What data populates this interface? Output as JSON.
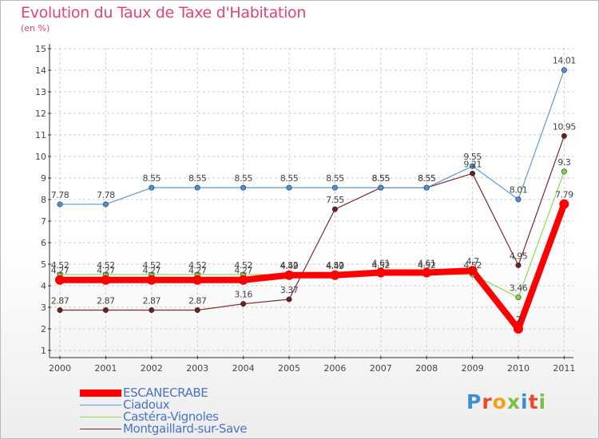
{
  "title": "Evolution du Taux de Taxe d'Habitation",
  "subtitle": "(en %)",
  "logo": "Proxiti",
  "colors": {
    "title": "#e0437b",
    "grid": "#cccccc",
    "axis": "#333333",
    "label": "#444444",
    "legend_text": "#4a73c5"
  },
  "chart_data": {
    "type": "line",
    "title": "Evolution du Taux de Taxe d'Habitation",
    "ylabel": "(en %)",
    "xlabel": "",
    "categories": [
      "2000",
      "2001",
      "2002",
      "2003",
      "2004",
      "2005",
      "2006",
      "2007",
      "2008",
      "2009",
      "2010",
      "2011"
    ],
    "yticks": [
      1,
      2,
      3,
      4,
      5,
      6,
      7,
      8,
      9,
      10,
      11,
      12,
      13,
      14,
      15
    ],
    "ylim": [
      0.5,
      15
    ],
    "grid": true,
    "legend_position": "bottom-left",
    "series": [
      {
        "name": "ESCANECRABE",
        "color": "#ff0000",
        "marker_color": "#ff0000",
        "style": "thick",
        "values": [
          4.27,
          4.27,
          4.27,
          4.27,
          4.27,
          4.49,
          4.49,
          4.61,
          4.61,
          4.7,
          2,
          7.79
        ],
        "labels": [
          "4.27",
          "4.27",
          "4.27",
          "4.27",
          "4.27",
          "4.49",
          "4.49",
          "4.61",
          "4.61",
          "4.7",
          "2",
          "7.79"
        ]
      },
      {
        "name": "Ciadoux",
        "color": "#5b9bd5",
        "marker_color": "#4a90d9",
        "style": "thin",
        "values": [
          7.78,
          7.78,
          8.55,
          8.55,
          8.55,
          8.55,
          8.55,
          8.55,
          8.55,
          9.55,
          8.01,
          14.01
        ],
        "labels": [
          "7.78",
          "7.78",
          "8.55",
          "8.55",
          "8.55",
          "8.55",
          "8.55",
          "8.55",
          "8.55",
          "9.55",
          "8.01",
          "14.01"
        ]
      },
      {
        "name": "Castéra-Vignoles",
        "color": "#88dd55",
        "marker_color": "#7ed348",
        "style": "thin",
        "values": [
          4.52,
          4.52,
          4.52,
          4.52,
          4.52,
          4.52,
          4.52,
          4.52,
          4.52,
          4.52,
          3.46,
          9.3
        ],
        "labels": [
          "4.52",
          "4.52",
          "4.52",
          "4.52",
          "4.52",
          "4.52",
          "4.52",
          "4.52",
          "4.52",
          "4.52",
          "3.46",
          "9.3"
        ]
      },
      {
        "name": "Montgaillard-sur-Save",
        "color": "#7a2a2a",
        "marker_color": "#6b1f1f",
        "style": "thin",
        "values": [
          2.87,
          2.87,
          2.87,
          2.87,
          3.16,
          3.37,
          7.55,
          8.55,
          8.55,
          9.21,
          4.95,
          10.95
        ],
        "labels": [
          "2.87",
          "2.87",
          "2.87",
          "2.87",
          "3.16",
          "3.37",
          "7.55",
          "8.55",
          "8.55",
          "9.21",
          "4.95",
          "10.95"
        ]
      }
    ]
  }
}
